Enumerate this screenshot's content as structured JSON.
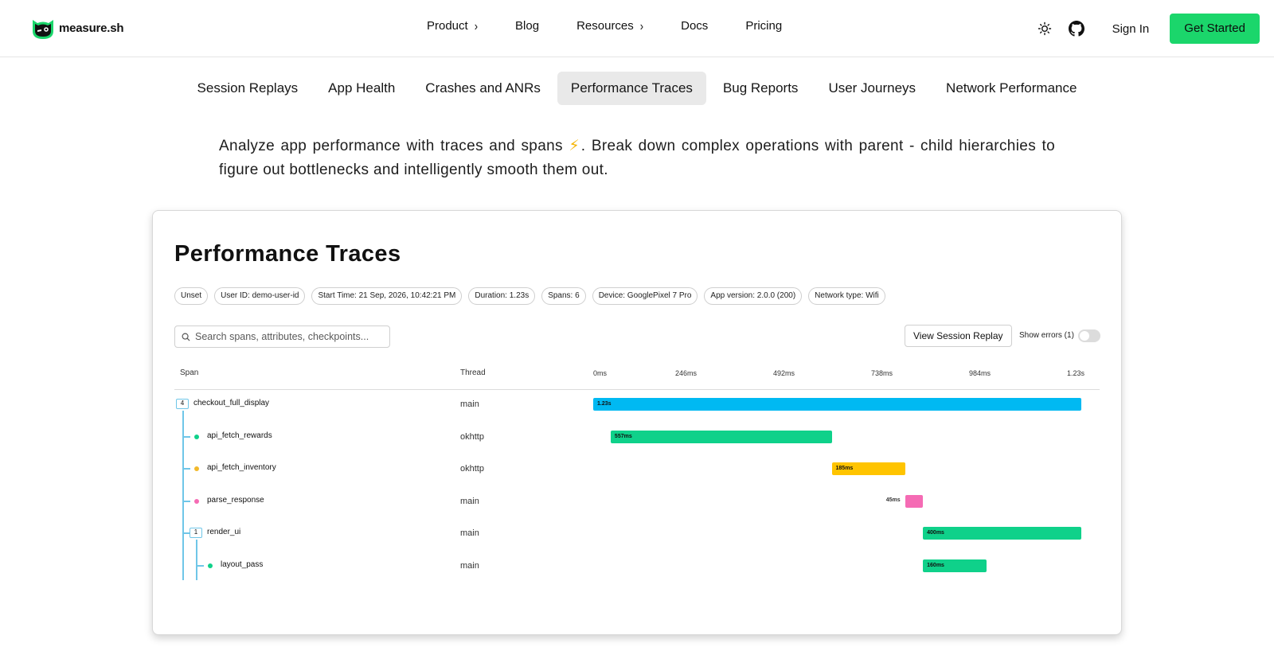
{
  "brand": {
    "name": "measure.sh"
  },
  "nav": {
    "links": [
      {
        "label": "Product",
        "chevron": true
      },
      {
        "label": "Blog",
        "chevron": false
      },
      {
        "label": "Resources",
        "chevron": true
      },
      {
        "label": "Docs",
        "chevron": false
      },
      {
        "label": "Pricing",
        "chevron": false
      }
    ],
    "theme_icon": "sun-icon",
    "github_icon": "github-icon",
    "sign_in": "Sign In",
    "cta": "Get Started",
    "cta_color": "#1bd66b"
  },
  "feature_tabs": {
    "items": [
      "Session Replays",
      "App Health",
      "Crashes and ANRs",
      "Performance Traces",
      "Bug Reports",
      "User Journeys",
      "Network Performance"
    ],
    "active": "Performance Traces"
  },
  "description": {
    "before_icon": "Analyze app performance with traces and spans",
    "icon": "⚡",
    "after_icon": ". Break down complex operations with parent - child hierarchies to figure out bottlenecks and intelligently smooth them out."
  },
  "trace": {
    "title": "Performance Traces",
    "chips": [
      "Unset",
      "User ID: demo-user-id",
      "Start Time: 21 Sep, 2026, 10:42:21 PM",
      "Duration: 1.23s",
      "Spans: 6",
      "Device: GooglePixel 7 Pro",
      "App version: 2.0.0 (200)",
      "Network type: Wifi"
    ],
    "search_placeholder": "Search spans, attributes, checkpoints...",
    "view_replay": "View Session Replay",
    "show_errors": "Show errors (1)",
    "show_errors_on": false,
    "columns": {
      "span": "Span",
      "thread": "Thread"
    },
    "timeline_ticks": [
      "0ms",
      "246ms",
      "492ms",
      "738ms",
      "984ms",
      "1.23s"
    ],
    "total_ms": 1230,
    "spans": [
      {
        "name": "checkout_full_display",
        "thread": "main",
        "start_ms": 0,
        "duration_ms": 1230,
        "label": "1.23s",
        "color": "#00b9f2",
        "depth": 0,
        "children_count": "4"
      },
      {
        "name": "api_fetch_rewards",
        "thread": "okhttp",
        "start_ms": 44,
        "duration_ms": 557,
        "label": "557ms",
        "color": "#0fd18a",
        "depth": 1,
        "dot_color": "#0fd18a"
      },
      {
        "name": "api_fetch_inventory",
        "thread": "okhttp",
        "start_ms": 601,
        "duration_ms": 185,
        "label": "185ms",
        "color": "#ffc400",
        "depth": 1,
        "dot_color": "#f2b92b"
      },
      {
        "name": "parse_response",
        "thread": "main",
        "start_ms": 786,
        "duration_ms": 45,
        "label": "45ms",
        "color": "#f56bb4",
        "depth": 1,
        "dot_color": "#f56bb4"
      },
      {
        "name": "render_ui",
        "thread": "main",
        "start_ms": 831,
        "duration_ms": 400,
        "label": "400ms",
        "color": "#0fd18a",
        "depth": 1,
        "children_count": "1"
      },
      {
        "name": "layout_pass",
        "thread": "main",
        "start_ms": 831,
        "duration_ms": 160,
        "label": "160ms",
        "color": "#0fd18a",
        "depth": 2,
        "dot_color": "#0fd18a"
      }
    ]
  }
}
